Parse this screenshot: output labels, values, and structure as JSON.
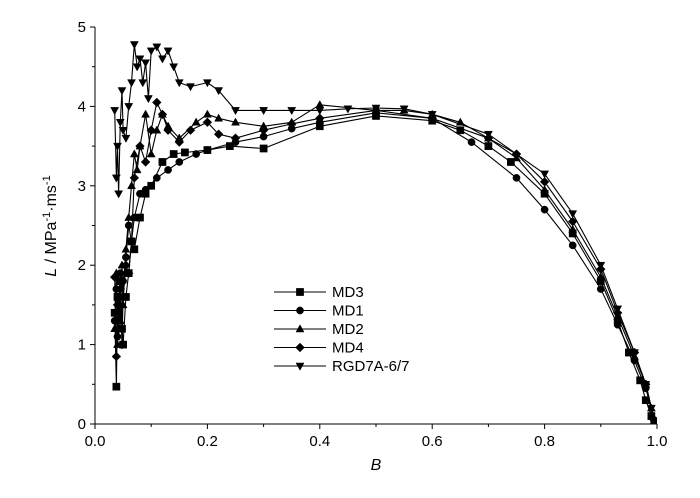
{
  "chart_data": {
    "type": "line",
    "title": "",
    "xlabel": "B",
    "ylabel": {
      "main": "L",
      "unit": "MPa",
      "exp1": "-1",
      "dot": "·ms",
      "exp2": "-1"
    },
    "xlim": [
      0.0,
      1.0
    ],
    "ylim": [
      0,
      5
    ],
    "xticks": [
      "0.0",
      "0.2",
      "0.4",
      "0.6",
      "0.8",
      "1.0"
    ],
    "yticks": [
      "0",
      "1",
      "2",
      "3",
      "4",
      "5"
    ],
    "grid": false,
    "legend_position": "lower-center",
    "series": [
      {
        "name": "MD3",
        "marker": "square",
        "x": [
          0.035,
          0.038,
          0.04,
          0.042,
          0.045,
          0.048,
          0.05,
          0.055,
          0.06,
          0.065,
          0.07,
          0.08,
          0.09,
          0.1,
          0.12,
          0.14,
          0.16,
          0.2,
          0.24,
          0.3,
          0.4,
          0.5,
          0.6,
          0.65,
          0.7,
          0.74,
          0.8,
          0.85,
          0.9,
          0.93,
          0.95,
          0.97,
          0.98,
          0.99,
          0.995
        ],
        "y": [
          1.4,
          0.47,
          1.6,
          1.3,
          1.8,
          1.2,
          1.0,
          1.6,
          1.9,
          2.3,
          2.2,
          2.6,
          2.9,
          3.0,
          3.3,
          3.4,
          3.42,
          3.45,
          3.5,
          3.47,
          3.75,
          3.88,
          3.82,
          3.7,
          3.5,
          3.3,
          2.9,
          2.4,
          1.8,
          1.3,
          0.9,
          0.55,
          0.3,
          0.1,
          0.02
        ]
      },
      {
        "name": "MD1",
        "marker": "circle",
        "x": [
          0.035,
          0.038,
          0.04,
          0.042,
          0.045,
          0.048,
          0.05,
          0.055,
          0.06,
          0.065,
          0.07,
          0.08,
          0.09,
          0.1,
          0.11,
          0.13,
          0.15,
          0.18,
          0.2,
          0.25,
          0.3,
          0.35,
          0.4,
          0.5,
          0.6,
          0.67,
          0.75,
          0.8,
          0.85,
          0.9,
          0.93,
          0.96,
          0.98,
          0.995
        ],
        "y": [
          1.3,
          1.7,
          1.1,
          1.5,
          1.9,
          1.2,
          1.8,
          2.1,
          2.5,
          2.3,
          2.6,
          2.9,
          2.95,
          3.0,
          3.1,
          3.2,
          3.3,
          3.4,
          3.45,
          3.55,
          3.62,
          3.72,
          3.8,
          3.92,
          3.85,
          3.55,
          3.1,
          2.7,
          2.25,
          1.7,
          1.25,
          0.8,
          0.45,
          0.05
        ]
      },
      {
        "name": "MD2",
        "marker": "triangle-up",
        "x": [
          0.035,
          0.038,
          0.04,
          0.042,
          0.045,
          0.048,
          0.05,
          0.055,
          0.06,
          0.065,
          0.07,
          0.075,
          0.08,
          0.09,
          0.1,
          0.11,
          0.12,
          0.13,
          0.15,
          0.18,
          0.2,
          0.22,
          0.25,
          0.3,
          0.35,
          0.4,
          0.5,
          0.55,
          0.6,
          0.65,
          0.7,
          0.75,
          0.8,
          0.85,
          0.9,
          0.93,
          0.96,
          0.98,
          0.99,
          0.995
        ],
        "y": [
          1.2,
          1.9,
          1.0,
          1.6,
          1.3,
          2.0,
          1.5,
          2.2,
          2.6,
          3.0,
          3.4,
          3.2,
          3.5,
          3.9,
          3.4,
          3.7,
          3.9,
          3.75,
          3.6,
          3.8,
          3.9,
          3.85,
          3.8,
          3.75,
          3.8,
          4.02,
          3.95,
          3.95,
          3.9,
          3.8,
          3.6,
          3.35,
          2.95,
          2.45,
          1.85,
          1.35,
          0.85,
          0.5,
          0.2,
          0.02
        ]
      },
      {
        "name": "MD4",
        "marker": "diamond",
        "x": [
          0.035,
          0.038,
          0.04,
          0.042,
          0.045,
          0.048,
          0.05,
          0.055,
          0.06,
          0.065,
          0.07,
          0.08,
          0.09,
          0.1,
          0.11,
          0.12,
          0.13,
          0.15,
          0.17,
          0.2,
          0.22,
          0.25,
          0.3,
          0.35,
          0.4,
          0.5,
          0.6,
          0.7,
          0.75,
          0.8,
          0.85,
          0.9,
          0.93,
          0.96,
          0.98,
          0.995
        ],
        "y": [
          1.85,
          0.85,
          1.5,
          1.2,
          1.7,
          1.0,
          1.6,
          2.0,
          1.9,
          2.3,
          3.1,
          3.5,
          3.3,
          3.7,
          4.05,
          3.9,
          3.7,
          3.55,
          3.7,
          3.8,
          3.65,
          3.6,
          3.7,
          3.78,
          3.85,
          3.95,
          3.85,
          3.6,
          3.4,
          3.05,
          2.55,
          1.95,
          1.4,
          0.9,
          0.5,
          0.05
        ]
      },
      {
        "name": "RGD7A-6/7",
        "marker": "triangle-down",
        "x": [
          0.035,
          0.038,
          0.04,
          0.042,
          0.045,
          0.048,
          0.05,
          0.055,
          0.06,
          0.065,
          0.07,
          0.075,
          0.08,
          0.085,
          0.09,
          0.095,
          0.1,
          0.11,
          0.12,
          0.13,
          0.14,
          0.15,
          0.17,
          0.2,
          0.22,
          0.25,
          0.3,
          0.35,
          0.4,
          0.45,
          0.5,
          0.55,
          0.6,
          0.7,
          0.8,
          0.85,
          0.9,
          0.93,
          0.96,
          0.98,
          0.99,
          0.995
        ],
        "y": [
          3.95,
          3.1,
          3.5,
          2.9,
          3.8,
          4.2,
          3.7,
          3.6,
          4.0,
          4.3,
          4.78,
          4.5,
          4.6,
          4.3,
          4.55,
          4.1,
          4.7,
          4.75,
          4.6,
          4.7,
          4.5,
          4.3,
          4.25,
          4.3,
          4.2,
          3.95,
          3.95,
          3.95,
          3.95,
          3.97,
          3.98,
          3.97,
          3.9,
          3.65,
          3.15,
          2.65,
          2.0,
          1.45,
          0.9,
          0.5,
          0.2,
          0.02
        ]
      }
    ]
  }
}
